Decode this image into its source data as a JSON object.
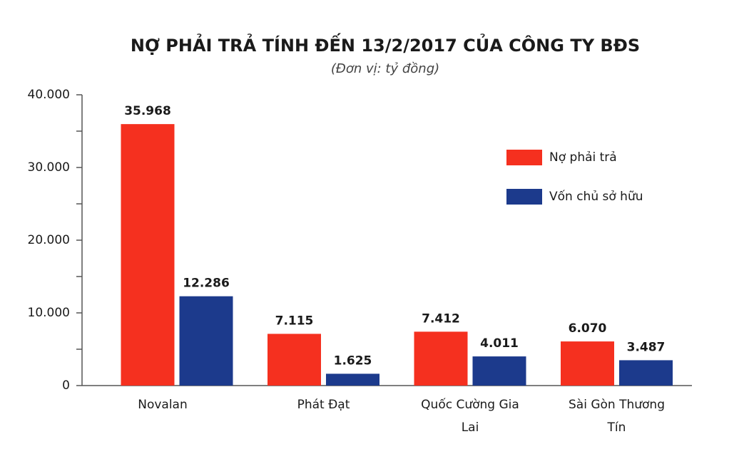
{
  "chart_data": {
    "type": "bar",
    "title": "NỢ PHẢI TRẢ TÍNH ĐẾN 13/2/2017 CỦA CÔNG TY BĐS",
    "subtitle": "(Đơn vị: tỷ đồng)",
    "categories": [
      "Novalan",
      "Phát Đạt",
      "Quốc Cường Gia Lai",
      "Sài Gòn Thương Tín"
    ],
    "series": [
      {
        "name": "Nợ phải trả",
        "color": "#f5301f",
        "values": [
          35968,
          7115,
          7412,
          6070
        ],
        "value_labels": [
          "35.968",
          "7.115",
          "7.412",
          "6.070"
        ]
      },
      {
        "name": "Vốn chủ sở hữu",
        "color": "#1c3a8c",
        "values": [
          12286,
          1625,
          4011,
          3487
        ],
        "value_labels": [
          "12.286",
          "1.625",
          "4.011",
          "3.487"
        ]
      }
    ],
    "ylim": [
      0,
      40000
    ],
    "yticks": [
      0,
      {
        "value": 10000,
        "label": "10.000"
      },
      {
        "value": 20000,
        "label": "20.000"
      },
      {
        "value": 30000,
        "label": "30.000"
      },
      {
        "value": 40000,
        "label": "40.000"
      }
    ],
    "minor_yticks": [
      5000,
      15000,
      25000,
      35000
    ],
    "legend": "upper right"
  }
}
